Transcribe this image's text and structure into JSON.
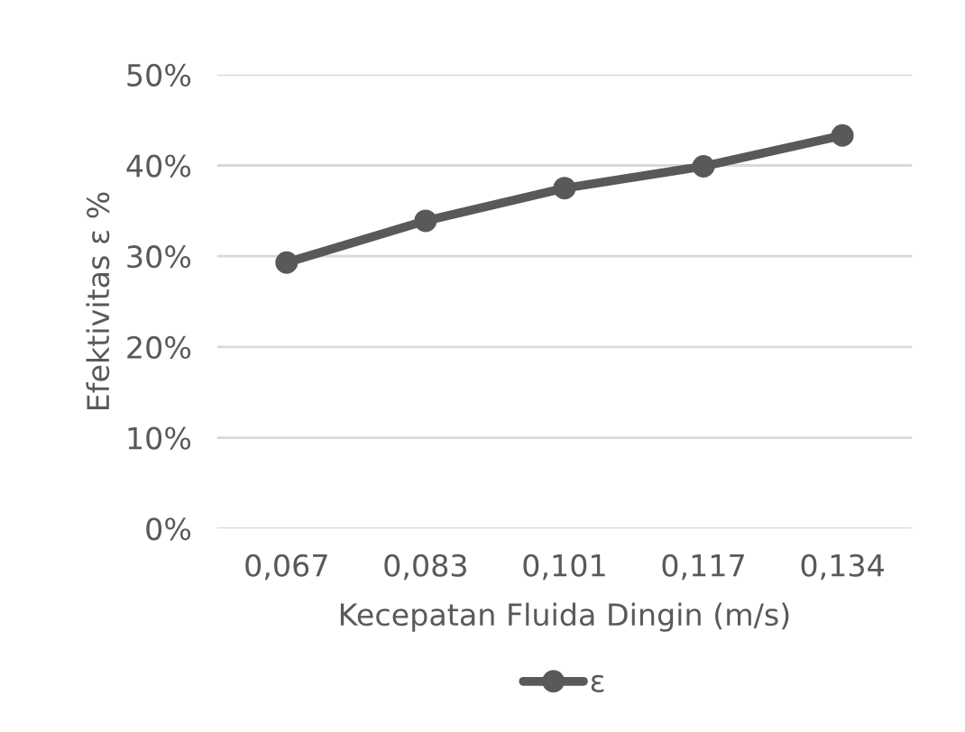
{
  "chart_data": {
    "type": "line",
    "categories": [
      "0,067",
      "0,083",
      "0,101",
      "0,117",
      "0,134"
    ],
    "series": [
      {
        "name": "ε",
        "color": "#595959",
        "values": [
          29.3,
          33.9,
          37.5,
          39.9,
          43.3
        ]
      }
    ],
    "xlabel": "Kecepatan Fluida Dingin (m/s)",
    "ylabel": "Efektivitas ε %",
    "ylim": [
      0,
      50
    ],
    "yticks": [
      {
        "value": 0,
        "label": "0%"
      },
      {
        "value": 10,
        "label": "10%"
      },
      {
        "value": 20,
        "label": "20%"
      },
      {
        "value": 30,
        "label": "30%"
      },
      {
        "value": 40,
        "label": "40%"
      },
      {
        "value": 50,
        "label": "50%"
      }
    ],
    "grid": "y",
    "legend": "bottom",
    "marker": "circle",
    "line_style": "solid"
  }
}
